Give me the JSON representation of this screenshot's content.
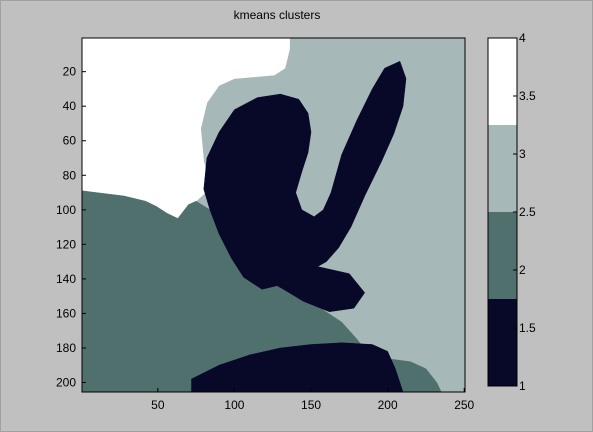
{
  "chart_data": {
    "type": "heatmap",
    "title": "kmeans clusters",
    "xlabel": "",
    "ylabel": "",
    "x_ticks": [
      50,
      100,
      150,
      200,
      250
    ],
    "y_ticks": [
      20,
      40,
      60,
      80,
      100,
      120,
      140,
      160,
      180,
      200
    ],
    "xlim": [
      0.5,
      250.5
    ],
    "ylim": [
      0.5,
      205.5
    ],
    "y_reversed": true,
    "grid": false,
    "colorbar": {
      "placement": "right",
      "range": [
        1,
        4
      ],
      "ticks": [
        "1",
        "1.5",
        "2",
        "2.5",
        "3",
        "3.5",
        "4"
      ],
      "levels": [
        {
          "value": 1,
          "color": "#080828"
        },
        {
          "value": 2,
          "color": "#4f706d"
        },
        {
          "value": 3,
          "color": "#a7b8b8"
        },
        {
          "value": 4,
          "color": "#ffffff"
        }
      ]
    },
    "regions": [
      {
        "cluster": 3,
        "points": [
          [
            0.5,
            0.5
          ],
          [
            250.5,
            0.5
          ],
          [
            250.5,
            205.5
          ],
          [
            0.5,
            205.5
          ]
        ]
      },
      {
        "cluster": 4,
        "points": [
          [
            0.5,
            0.5
          ],
          [
            136,
            0.5
          ],
          [
            136,
            7
          ],
          [
            133,
            18
          ],
          [
            126,
            22
          ],
          [
            100,
            24
          ],
          [
            90,
            28
          ],
          [
            82,
            38
          ],
          [
            78,
            53
          ],
          [
            80,
            72
          ],
          [
            84,
            86
          ],
          [
            80,
            91
          ],
          [
            75,
            95
          ],
          [
            70,
            97
          ],
          [
            63,
            105
          ],
          [
            56,
            102
          ],
          [
            49,
            98
          ],
          [
            42,
            95
          ],
          [
            28,
            92
          ],
          [
            10,
            90
          ],
          [
            0.5,
            89
          ]
        ]
      },
      {
        "cluster": 2,
        "points": [
          [
            0.5,
            89
          ],
          [
            10,
            90
          ],
          [
            28,
            92
          ],
          [
            42,
            95
          ],
          [
            49,
            98
          ],
          [
            56,
            102
          ],
          [
            63,
            105
          ],
          [
            70,
            97
          ],
          [
            75,
            95
          ],
          [
            84,
            100
          ],
          [
            95,
            110
          ],
          [
            110,
            130
          ],
          [
            125,
            140
          ],
          [
            148,
            150
          ],
          [
            158,
            158
          ],
          [
            170,
            165
          ],
          [
            180,
            175
          ],
          [
            187,
            183
          ],
          [
            198,
            186
          ],
          [
            215,
            188
          ],
          [
            225,
            192
          ],
          [
            232,
            200
          ],
          [
            235,
            205.5
          ],
          [
            0.5,
            205.5
          ]
        ]
      },
      {
        "cluster": 1,
        "points": [
          [
            80,
            88
          ],
          [
            82,
            70
          ],
          [
            90,
            55
          ],
          [
            100,
            42
          ],
          [
            115,
            35
          ],
          [
            130,
            33
          ],
          [
            142,
            36
          ],
          [
            148,
            44
          ],
          [
            150,
            55
          ],
          [
            148,
            67
          ],
          [
            144,
            78
          ],
          [
            140,
            90
          ],
          [
            144,
            100
          ],
          [
            152,
            104
          ],
          [
            158,
            100
          ],
          [
            163,
            90
          ],
          [
            170,
            68
          ],
          [
            180,
            48
          ],
          [
            190,
            30
          ],
          [
            198,
            18
          ],
          [
            208,
            14
          ],
          [
            212,
            24
          ],
          [
            210,
            40
          ],
          [
            204,
            56
          ],
          [
            196,
            72
          ],
          [
            185,
            92
          ],
          [
            176,
            110
          ],
          [
            168,
            122
          ],
          [
            160,
            130
          ],
          [
            152,
            134
          ],
          [
            144,
            138
          ],
          [
            132,
            143
          ],
          [
            118,
            146
          ],
          [
            106,
            139
          ],
          [
            98,
            128
          ],
          [
            90,
            114
          ],
          [
            84,
            100
          ]
        ]
      },
      {
        "cluster": 1,
        "points": [
          [
            128,
            128
          ],
          [
            150,
            132
          ],
          [
            175,
            137
          ],
          [
            185,
            148
          ],
          [
            178,
            157
          ],
          [
            162,
            159
          ],
          [
            145,
            153
          ],
          [
            132,
            146
          ],
          [
            120,
            140
          ]
        ]
      },
      {
        "cluster": 1,
        "points": [
          [
            72,
            198
          ],
          [
            90,
            190
          ],
          [
            110,
            184
          ],
          [
            130,
            180
          ],
          [
            150,
            178
          ],
          [
            170,
            177
          ],
          [
            190,
            178
          ],
          [
            200,
            182
          ],
          [
            205,
            192
          ],
          [
            210,
            205.5
          ],
          [
            72,
            205.5
          ]
        ]
      }
    ]
  }
}
